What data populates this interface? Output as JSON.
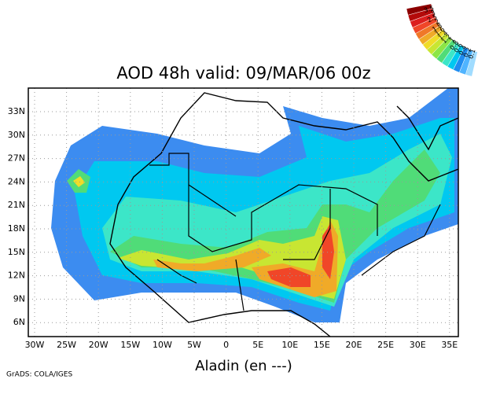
{
  "title": "AOD 48h valid: 09/MAR/06 00z",
  "x_labels": [
    "30W",
    "25W",
    "20W",
    "15W",
    "10W",
    "5W",
    "0",
    "5E",
    "10E",
    "15E",
    "20E",
    "25E",
    "30E",
    "35E"
  ],
  "y_labels": [
    "33N",
    "30N",
    "27N",
    "24N",
    "21N",
    "18N",
    "15N",
    "12N",
    "9N",
    "6N"
  ],
  "caption": "Aladin (en ---)",
  "credit": "GrADS: COLA/IGES",
  "colorbar": {
    "labels": [
      "0.1",
      "0.2",
      "0.4",
      "0.6",
      "0.8",
      "1",
      "1.2",
      "1.4",
      "1.6",
      "1.8",
      "2",
      "2.5",
      "3",
      "3.5"
    ],
    "colors": [
      "#a0dcff",
      "#50b4ff",
      "#1e8cf0",
      "#00c8f0",
      "#3ce6c8",
      "#50dc78",
      "#8ce646",
      "#c8e632",
      "#f0dc28",
      "#f0aa28",
      "#f07828",
      "#f04628",
      "#dc1e1e",
      "#b40a0a",
      "#8c0000"
    ]
  }
}
